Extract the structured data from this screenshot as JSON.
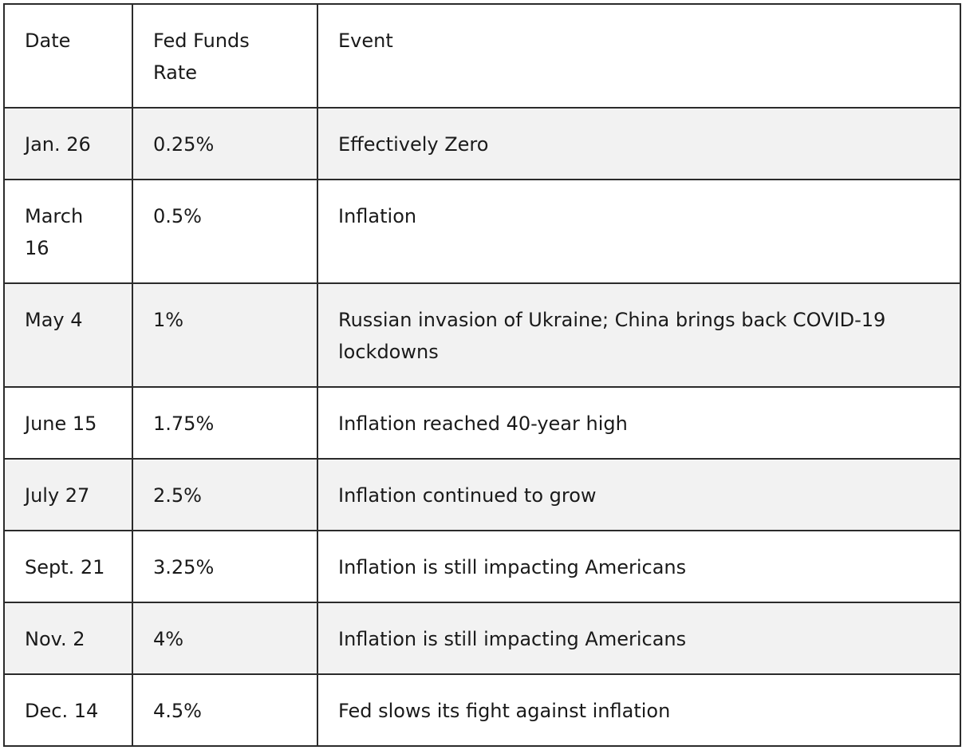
{
  "header": {
    "date": "Date",
    "rate": "Fed Funds Rate",
    "event": "Event"
  },
  "rows": [
    {
      "date": "Jan. 26",
      "rate": "0.25%",
      "event": "Effectively Zero"
    },
    {
      "date": "March 16",
      "rate": "0.5%",
      "event": "Inflation"
    },
    {
      "date": "May 4",
      "rate": "1%",
      "event": "Russian invasion of Ukraine; China brings back COVID-19 lockdowns"
    },
    {
      "date": "June 15",
      "rate": "1.75%",
      "event": "Inflation reached 40-year high"
    },
    {
      "date": "July 27",
      "rate": "2.5%",
      "event": "Inflation continued to grow"
    },
    {
      "date": "Sept. 21",
      "rate": "3.25%",
      "event": "Inflation is still impacting Americans"
    },
    {
      "date": "Nov. 2",
      "rate": "4%",
      "event": "Inflation is still impacting Americans"
    },
    {
      "date": "Dec. 14",
      "rate": "4.5%",
      "event": "Fed slows its fight against inflation"
    }
  ]
}
